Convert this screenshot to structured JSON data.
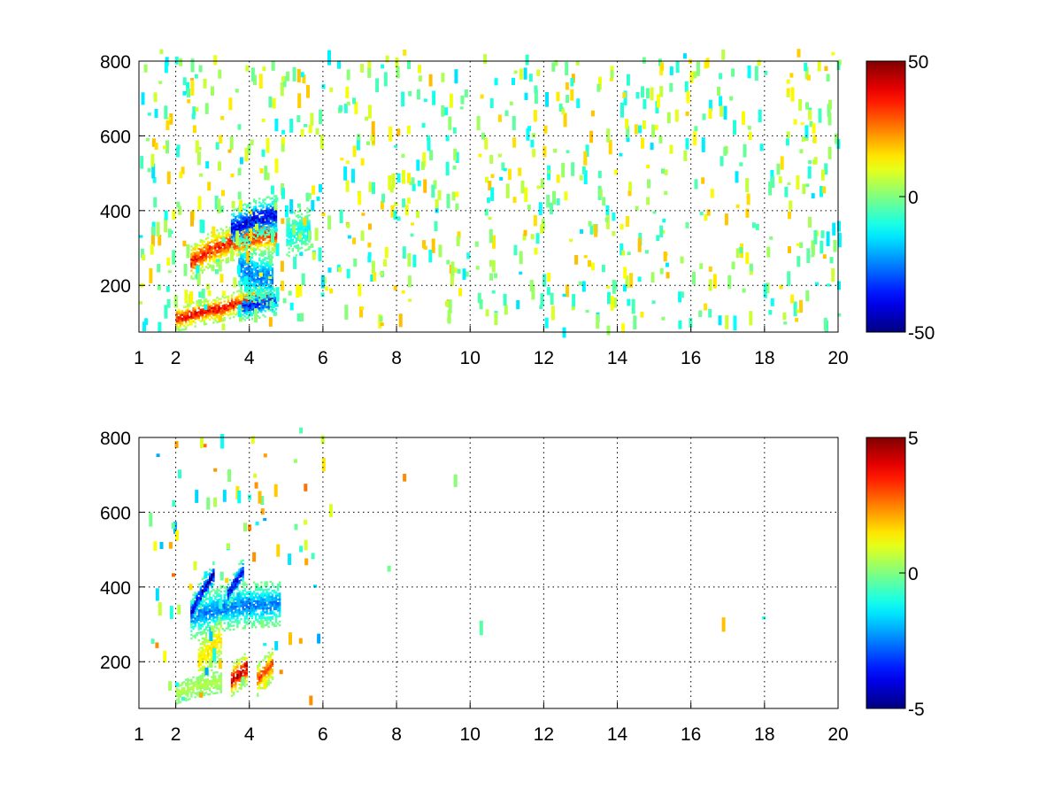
{
  "chart_data": [
    {
      "type": "heatmap",
      "title": "",
      "xlabel": "",
      "ylabel": "",
      "xlim": [
        1,
        20
      ],
      "ylim": [
        75,
        800
      ],
      "xticks": [
        "1",
        "2",
        "4",
        "6",
        "8",
        "10",
        "12",
        "14",
        "16",
        "18",
        "20"
      ],
      "xtick_values": [
        1,
        2,
        4,
        6,
        8,
        10,
        12,
        14,
        16,
        18,
        20
      ],
      "yticks": [
        "200",
        "400",
        "600",
        "800"
      ],
      "ytick_values": [
        200,
        400,
        600,
        800
      ],
      "grid": true,
      "colormap": "jet",
      "colorbar": {
        "min": -50,
        "max": 50,
        "labels": [
          "50",
          "0",
          "-50"
        ],
        "label_values": [
          50,
          0,
          -50
        ]
      },
      "features": [
        {
          "x": [
            2.0,
            2.3,
            2.6,
            2.9,
            3.2,
            3.5,
            3.8,
            4.1,
            4.4,
            4.6
          ],
          "y": [
            110,
            115,
            125,
            130,
            135,
            145,
            155,
            160,
            165,
            165
          ],
          "value": 38,
          "sigma_y": 14
        },
        {
          "x": [
            2.4,
            2.7,
            3.0,
            3.3,
            3.6,
            3.9,
            4.2,
            4.5,
            4.7
          ],
          "y": [
            260,
            280,
            295,
            305,
            315,
            320,
            330,
            335,
            335
          ],
          "value": 35,
          "sigma_y": 20
        },
        {
          "x": [
            3.5,
            3.8,
            4.1,
            4.4,
            4.7
          ],
          "y": [
            350,
            360,
            375,
            380,
            385
          ],
          "value": -40,
          "sigma_y": 22
        },
        {
          "x": [
            3.8,
            4.1,
            4.4,
            4.7
          ],
          "y": [
            140,
            145,
            150,
            155
          ],
          "value": -35,
          "sigma_y": 15
        },
        {
          "x": [
            3.7,
            4.0,
            4.3,
            4.6
          ],
          "y": [
            250,
            230,
            220,
            215
          ],
          "value": -25,
          "sigma_y": 30
        },
        {
          "x": [
            5.0,
            5.3,
            5.6
          ],
          "y": [
            330,
            340,
            350
          ],
          "value": -12,
          "sigma_y": 25
        }
      ]
    },
    {
      "type": "heatmap",
      "title": "",
      "xlabel": "",
      "ylabel": "",
      "xlim": [
        1,
        20
      ],
      "ylim": [
        75,
        800
      ],
      "xticks": [
        "1",
        "2",
        "4",
        "6",
        "8",
        "10",
        "12",
        "14",
        "16",
        "18",
        "20"
      ],
      "xtick_values": [
        1,
        2,
        4,
        6,
        8,
        10,
        12,
        14,
        16,
        18,
        20
      ],
      "yticks": [
        "200",
        "400",
        "600",
        "800"
      ],
      "ytick_values": [
        200,
        400,
        600,
        800
      ],
      "grid": true,
      "colormap": "jet",
      "colorbar": {
        "min": -5,
        "max": 5,
        "labels": [
          "5",
          "0",
          "-5"
        ],
        "label_values": [
          5,
          0,
          -5
        ]
      },
      "features": [
        {
          "x": [
            2.4,
            2.8,
            3.2,
            3.6,
            4.0,
            4.4,
            4.8
          ],
          "y": [
            320,
            330,
            340,
            345,
            350,
            350,
            355
          ],
          "value": -2.5,
          "sigma_y": 25
        },
        {
          "x": [
            2.4,
            2.6,
            2.8,
            3.0
          ],
          "y": [
            330,
            370,
            400,
            430
          ],
          "value": -4.5,
          "sigma_y": 15
        },
        {
          "x": [
            3.4,
            3.6,
            3.8
          ],
          "y": [
            380,
            410,
            440
          ],
          "value": -4,
          "sigma_y": 15
        },
        {
          "x": [
            3.5,
            3.7,
            3.9
          ],
          "y": [
            150,
            165,
            180
          ],
          "value": 4.5,
          "sigma_y": 18
        },
        {
          "x": [
            4.2,
            4.4,
            4.6
          ],
          "y": [
            150,
            170,
            190
          ],
          "value": 3,
          "sigma_y": 18
        },
        {
          "x": [
            2.0,
            2.3,
            2.6,
            2.9,
            3.2
          ],
          "y": [
            115,
            125,
            135,
            140,
            145
          ],
          "value": 0.5,
          "sigma_y": 12
        },
        {
          "x": [
            2.6,
            2.9,
            3.2
          ],
          "y": [
            200,
            230,
            260
          ],
          "value": 1.5,
          "sigma_y": 25
        }
      ]
    }
  ]
}
